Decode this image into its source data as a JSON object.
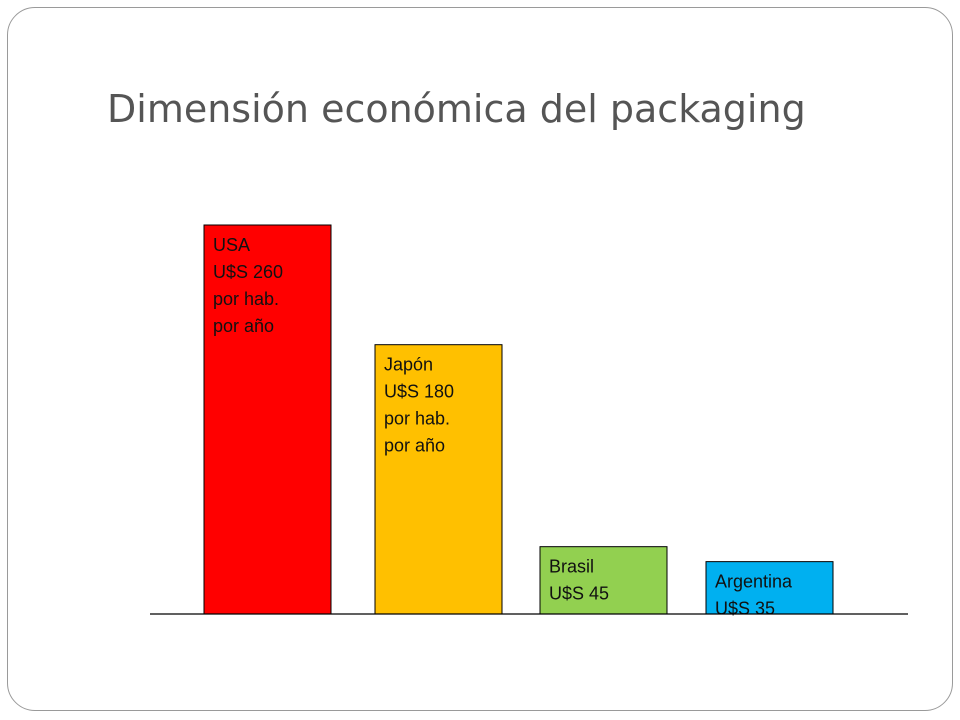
{
  "slide": {
    "title": "Dimensión económica del packaging"
  },
  "chart_data": {
    "type": "bar",
    "categories": [
      "USA",
      "Japón",
      "Brasil",
      "Argentina"
    ],
    "values": [
      260,
      180,
      45,
      35
    ],
    "unit": "U$S",
    "colors": [
      "#ff0000",
      "#ffc000",
      "#92d050",
      "#00b0f0"
    ],
    "labels": [
      [
        "USA",
        "U$S 260",
        "por hab.",
        "por año"
      ],
      [
        "Japón",
        "U$S 180",
        "por hab.",
        "por año"
      ],
      [
        "Brasil",
        "U$S 45"
      ],
      [
        "Argentina",
        "U$S 35"
      ]
    ],
    "title": "",
    "xlabel": "",
    "ylabel": "",
    "ylim": [
      0,
      260
    ],
    "grid": false,
    "legend": "none"
  }
}
